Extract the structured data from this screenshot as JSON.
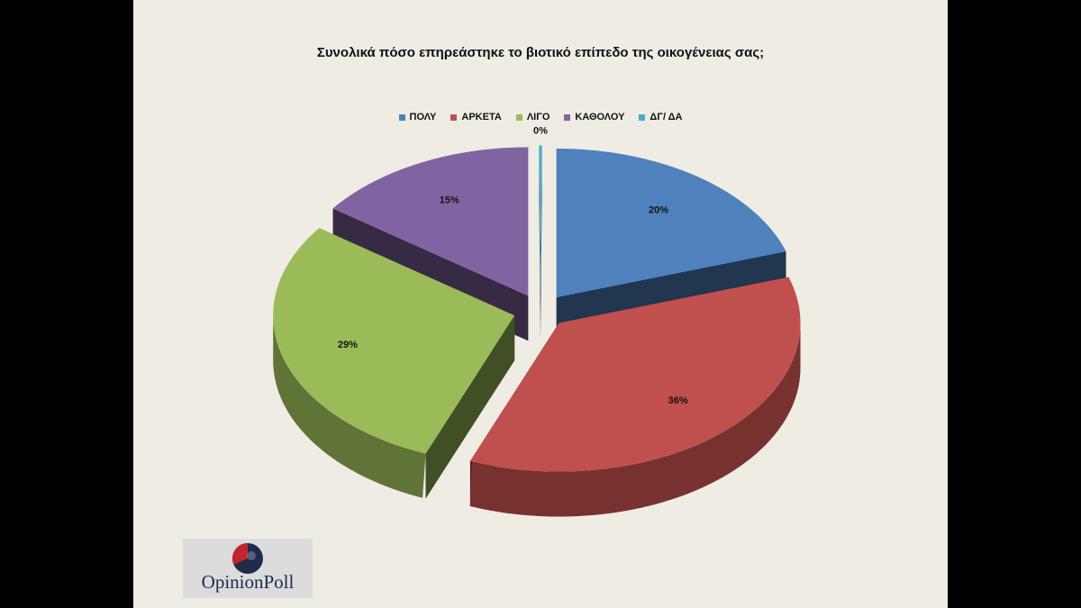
{
  "chart_data": {
    "type": "pie",
    "title": "Συνολικά πόσο επηρεάστηκε το βιοτικό επίπεδο της οικογένειας σας;",
    "categories": [
      "ΠΟΛΥ",
      "ΑΡΚΕΤΑ",
      "ΛΙΓΟ",
      "ΚΑΘΟΛΟΥ",
      "ΔΓ/ ΔΑ"
    ],
    "values": [
      20,
      36,
      29,
      15,
      0
    ],
    "data_labels": [
      "20%",
      "36%",
      "29%",
      "15%",
      "0%"
    ],
    "colors": [
      "#4f81bd",
      "#c0504d",
      "#9bbb59",
      "#8064a2",
      "#4bacc6"
    ],
    "legend_position": "top",
    "style": "3d exploded pie"
  },
  "logo": {
    "text": "OpinionPoll",
    "colors": [
      "#c0262d",
      "#1e2b4d"
    ]
  }
}
